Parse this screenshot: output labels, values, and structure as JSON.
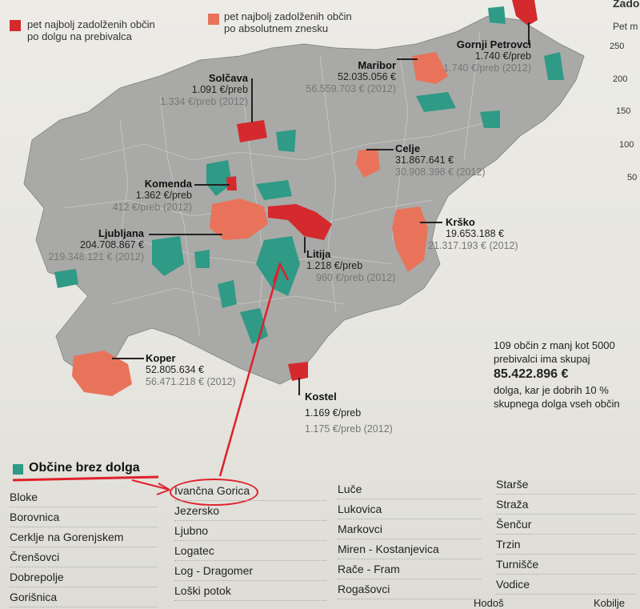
{
  "legend": {
    "per_capita_label": "pet najbolj zadolženih občin\npo dolgu na prebivalca",
    "absolute_label": "pet najbolj zadolženih občin\npo absolutnem znesku",
    "per_capita_color": "#d42a2e",
    "absolute_color": "#e8735a",
    "no_debt_color": "#2f9a86"
  },
  "municipalities": {
    "gornji_petrovci": {
      "name": "Gornji Petrovci",
      "value": "1.740 €/preb",
      "old": "1.740 €/preb (2012)"
    },
    "maribor": {
      "name": "Maribor",
      "value": "52.035.056 €",
      "old": "56.559.703 € (2012)"
    },
    "solcava": {
      "name": "Solčava",
      "value": "1.091 €/preb",
      "old": "1.334 €/preb (2012)"
    },
    "celje": {
      "name": "Celje",
      "value": "31.867.641 €",
      "old": "30.908.398 € (2012)"
    },
    "komenda": {
      "name": "Komenda",
      "value": "1.362 €/preb",
      "old": "412 €/preb (2012)"
    },
    "krsko": {
      "name": "Krško",
      "value": "19.653.188 €",
      "old": "21.317.193 € (2012)"
    },
    "ljubljana": {
      "name": "Ljubljana",
      "value": "204.708.867 €",
      "old": "219.348.121 € (2012)"
    },
    "litija": {
      "name": "Litija",
      "value": "1.218 €/preb",
      "old": "960 €/preb (2012)"
    },
    "koper": {
      "name": "Koper",
      "value": "52.805.634 €",
      "old": "56.471.218 € (2012)"
    },
    "kostel": {
      "name": "Kostel",
      "value": "1.169  €/preb",
      "old": "1.175  €/preb (2012)"
    }
  },
  "summary": {
    "line1": "109 občin z manj kot 5000",
    "line2": "prebivalci ima skupaj",
    "amount": "85.422.896 €",
    "line3": "dolga, kar je dobrih 10 %",
    "line4": "skupnega dolga vseh občin"
  },
  "side_chart": {
    "title": "Zadol",
    "subtitle": "Pet m",
    "ticks": [
      "250",
      "200",
      "150",
      "100",
      "50"
    ]
  },
  "no_debt": {
    "title": "Občine brez dolga",
    "columns": [
      [
        "Bloke",
        "Borovnica",
        "Cerklje na Gorenjskem",
        "Črenšovci",
        "Dobrepolje",
        "Gorišnica"
      ],
      [
        "Ivančna Gorica",
        "Jezersko",
        "Ljubno",
        "Logatec",
        "Log - Dragomer",
        "Loški potok"
      ],
      [
        "Luče",
        "Lukovica",
        "Markovci",
        "Miren - Kostanjevica",
        "Rače - Fram",
        "Rogašovci"
      ],
      [
        "Starše",
        "Straža",
        "Šenčur",
        "Trzin",
        "Turnišče",
        "Vodice"
      ]
    ],
    "cutoff": [
      "Hodoš",
      "Kobilje"
    ]
  }
}
